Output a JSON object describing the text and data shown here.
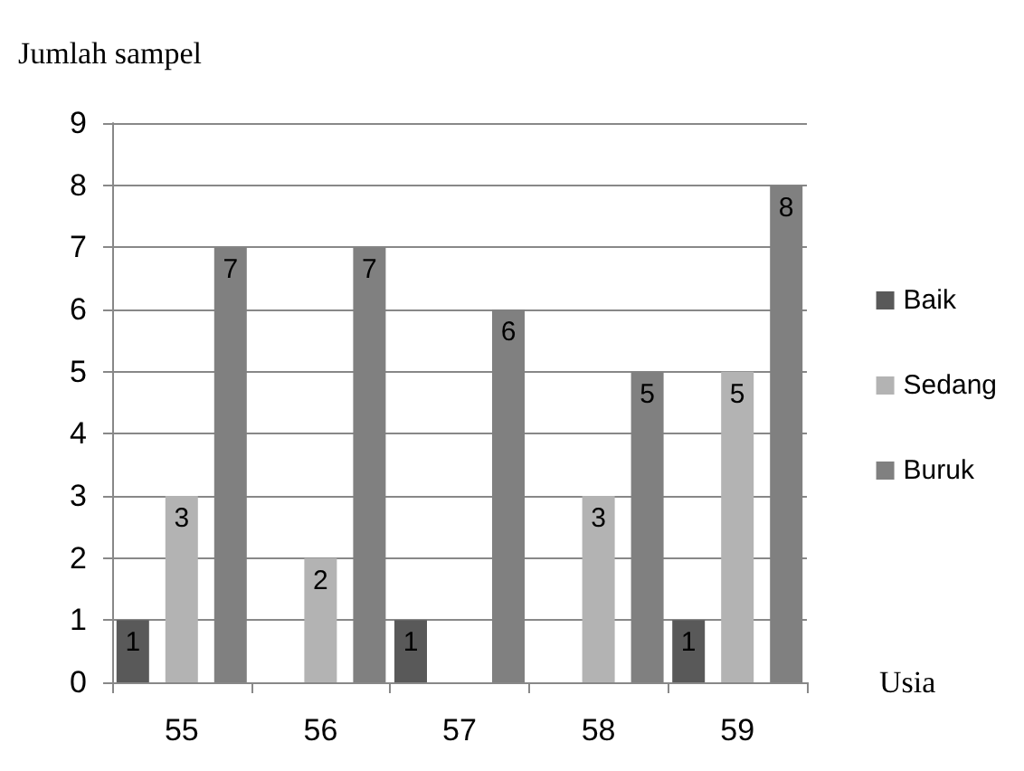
{
  "chart_data": {
    "type": "bar",
    "ylabel": "Jumlah sampel",
    "xlabel": "Usia",
    "categories": [
      "55",
      "56",
      "57",
      "58",
      "59"
    ],
    "series": [
      {
        "name": "Baik",
        "color": "#595959",
        "values": [
          1,
          0,
          1,
          0,
          1
        ],
        "value_labels": [
          "1",
          null,
          "1",
          null,
          "1"
        ]
      },
      {
        "name": "Sedang",
        "color": "#b3b3b3",
        "values": [
          3,
          2,
          0,
          3,
          5
        ],
        "value_labels": [
          "3",
          "2",
          null,
          "3",
          "5"
        ]
      },
      {
        "name": "Buruk",
        "color": "#808080",
        "values": [
          7,
          7,
          6,
          5,
          8
        ],
        "value_labels": [
          "7",
          "7",
          "6",
          "5",
          "8"
        ]
      }
    ],
    "ylim": [
      0,
      9
    ],
    "yticks": [
      0,
      1,
      2,
      3,
      4,
      5,
      6,
      7,
      8,
      9
    ],
    "grid": "y",
    "legend": "right"
  }
}
